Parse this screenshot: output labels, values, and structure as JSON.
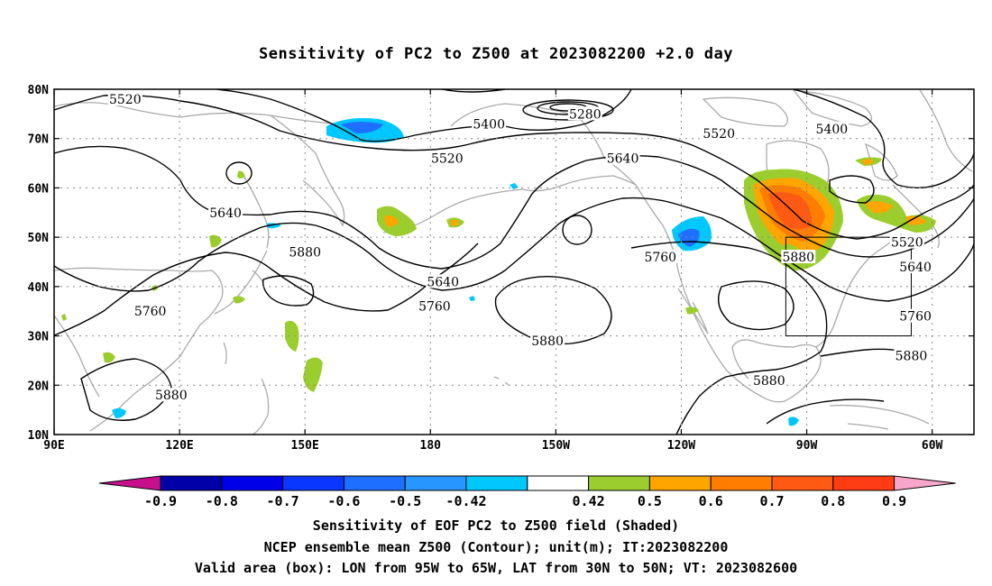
{
  "title": "Sensitivity of PC2 to Z500 at 2023082200 +2.0 day",
  "map": {
    "lon_range": [
      90,
      310
    ],
    "lat_range": [
      10,
      80
    ],
    "lat_ticks": [
      {
        "value": 80,
        "label": "80N"
      },
      {
        "value": 70,
        "label": "70N"
      },
      {
        "value": 60,
        "label": "60N"
      },
      {
        "value": 50,
        "label": "50N"
      },
      {
        "value": 40,
        "label": "40N"
      },
      {
        "value": 30,
        "label": "30N"
      },
      {
        "value": 20,
        "label": "20N"
      },
      {
        "value": 10,
        "label": "10N"
      }
    ],
    "lon_ticks": [
      {
        "value": 90,
        "label": "90E"
      },
      {
        "value": 120,
        "label": "120E"
      },
      {
        "value": 150,
        "label": "150E"
      },
      {
        "value": 180,
        "label": "180"
      },
      {
        "value": 210,
        "label": "150W"
      },
      {
        "value": 240,
        "label": "120W"
      },
      {
        "value": 270,
        "label": "90W"
      },
      {
        "value": 300,
        "label": "60W"
      }
    ],
    "valid_box": {
      "lon_min": 265,
      "lon_max": 295,
      "lat_min": 30,
      "lat_max": 50
    },
    "contour_labels": [
      {
        "text": "5520",
        "lon": 107,
        "lat": 78
      },
      {
        "text": "5280",
        "lon": 217,
        "lat": 75
      },
      {
        "text": "5400",
        "lon": 194,
        "lat": 73
      },
      {
        "text": "5520",
        "lon": 249,
        "lat": 71
      },
      {
        "text": "5400",
        "lon": 276,
        "lat": 72
      },
      {
        "text": "5520",
        "lon": 184,
        "lat": 66
      },
      {
        "text": "5640",
        "lon": 226,
        "lat": 66
      },
      {
        "text": "5640",
        "lon": 131,
        "lat": 55
      },
      {
        "text": "5880",
        "lon": 150,
        "lat": 47
      },
      {
        "text": "5640",
        "lon": 183,
        "lat": 41
      },
      {
        "text": "5760",
        "lon": 181,
        "lat": 36
      },
      {
        "text": "5760",
        "lon": 113,
        "lat": 35
      },
      {
        "text": "5760",
        "lon": 235,
        "lat": 46
      },
      {
        "text": "5880",
        "lon": 268,
        "lat": 46
      },
      {
        "text": "5520",
        "lon": 294,
        "lat": 49
      },
      {
        "text": "5640",
        "lon": 296,
        "lat": 44
      },
      {
        "text": "5760",
        "lon": 296,
        "lat": 34
      },
      {
        "text": "5880",
        "lon": 208,
        "lat": 29
      },
      {
        "text": "5880",
        "lon": 295,
        "lat": 26
      },
      {
        "text": "5880",
        "lon": 261,
        "lat": 21
      },
      {
        "text": "5880",
        "lon": 118,
        "lat": 18
      }
    ]
  },
  "colorbar": {
    "colors": {
      "neg_tip": "#c8108c",
      "neg_09": "#0000a8",
      "neg_08": "#0000e8",
      "neg_07": "#0a37ff",
      "neg_06": "#1f6fff",
      "neg_05": "#2896ff",
      "neg_042": "#00c8ff",
      "white": "#ffffff",
      "pos_042": "#9bcd2e",
      "pos_05": "#ffa500",
      "pos_06": "#ff7d00",
      "pos_07": "#ff5a14",
      "pos_08": "#ff3c14",
      "pos_09": "#ff0000",
      "pos_tip": "#f7a5c8"
    },
    "labels": [
      "-0.9",
      "-0.8",
      "-0.7",
      "-0.6",
      "-0.5",
      "-0.42",
      "0.42",
      "0.5",
      "0.6",
      "0.7",
      "0.8",
      "0.9"
    ]
  },
  "captions": [
    "Sensitivity of EOF PC2 to Z500 field (Shaded)",
    "NCEP ensemble mean Z500 (Contour); unit(m); IT:2023082200",
    "Valid area (box): LON from 95W to 65W, LAT from 30N to 50N; VT: 2023082600"
  ]
}
